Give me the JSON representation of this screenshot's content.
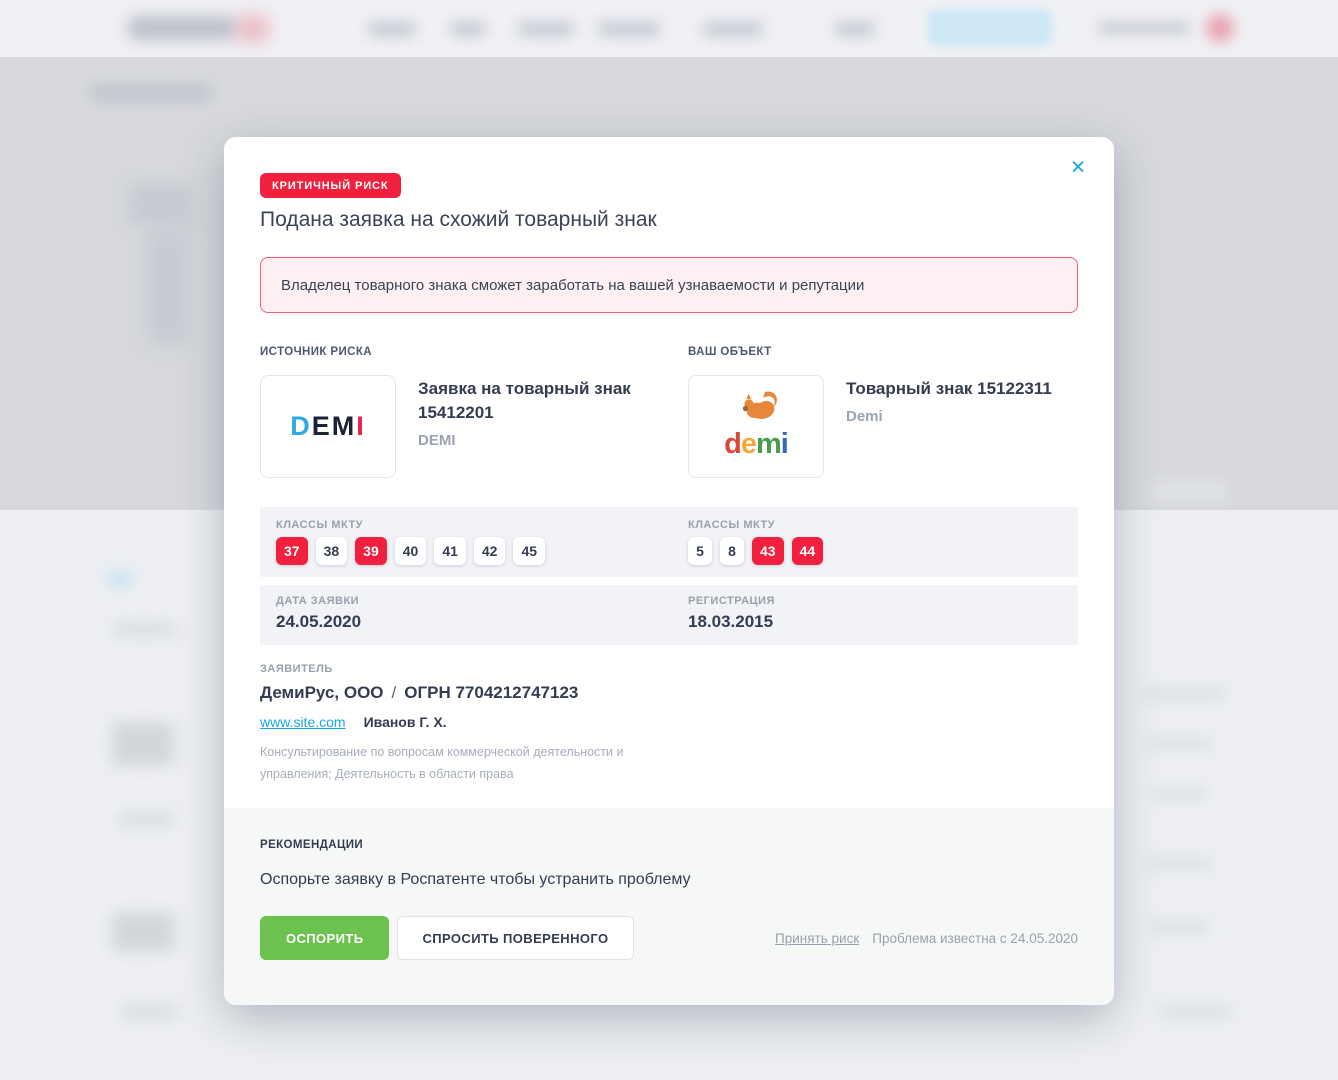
{
  "colors": {
    "accent-red": "#f0203e",
    "accent-blue": "#18a7e2",
    "accent-green": "#6cc24f",
    "warning-bg": "#fdf0f2",
    "warning-border": "#ef6078",
    "band-bg": "#f1f3f6",
    "footer-bg": "#f5f8f6"
  },
  "modal": {
    "badge": "КРИТИЧНЫЙ РИСК",
    "close_icon": "×",
    "title": "Подана заявка на схожий товарный знак",
    "warning": "Владелец товарного знака сможет заработать на вашей узнаваемости и репутации",
    "source": {
      "label": "ИСТОЧНИК РИСКА",
      "logo_letters": [
        {
          "char": "D",
          "color": "#2aabe4"
        },
        {
          "char": "E",
          "color": "#1d2334"
        },
        {
          "char": "M",
          "color": "#1d2334"
        },
        {
          "char": "I",
          "color": "#ee2049"
        }
      ],
      "title_line1": "Заявка на товарный знак",
      "title_line2": "15412201",
      "subtitle": "DEMI",
      "classes_label": "КЛАССЫ МКТУ",
      "classes": [
        {
          "value": "37",
          "active": true
        },
        {
          "value": "38",
          "active": false
        },
        {
          "value": "39",
          "active": true
        },
        {
          "value": "40",
          "active": false
        },
        {
          "value": "41",
          "active": false
        },
        {
          "value": "42",
          "active": false
        },
        {
          "value": "45",
          "active": false
        }
      ],
      "date_label": "ДАТА ЗАЯВКИ",
      "date_value": "24.05.2020"
    },
    "object": {
      "label": "ВАШ ОБЪЕКТ",
      "logo_letters": [
        {
          "char": "d",
          "color": "#d7493b"
        },
        {
          "char": "e",
          "color": "#f0a93a"
        },
        {
          "char": "m",
          "color": "#4e9b4e"
        },
        {
          "char": "i",
          "color": "#3069c0"
        }
      ],
      "title": "Товарный знак 15122311",
      "subtitle": "Demi",
      "classes_label": "КЛАССЫ МКТУ",
      "classes": [
        {
          "value": "5",
          "active": false
        },
        {
          "value": "8",
          "active": false
        },
        {
          "value": "43",
          "active": true
        },
        {
          "value": "44",
          "active": true
        }
      ],
      "date_label": "РЕГИСТРАЦИЯ",
      "date_value": "18.03.2015"
    },
    "applicant": {
      "label": "ЗАЯВИТЕЛЬ",
      "name": "ДемиРус, ООО",
      "separator": "/",
      "ogrn": "ОГРН 7704212747123",
      "site": "www.site.com",
      "person": "Иванов Г. Х.",
      "activity": "Консультирование по вопросам коммерческой деятельности и управления; Деятельность в области права"
    },
    "recommendations": {
      "label": "РЕКОМЕНДАЦИИ",
      "text": "Оспорьте заявку в Роспатенте чтобы устранить проблему",
      "primary_button": "ОСПОРИТЬ",
      "secondary_button": "СПРОСИТЬ ПОВЕРЕННОГО",
      "accept_link": "Принять риск",
      "known_since": "Проблема известна с 24.05.2020"
    }
  }
}
